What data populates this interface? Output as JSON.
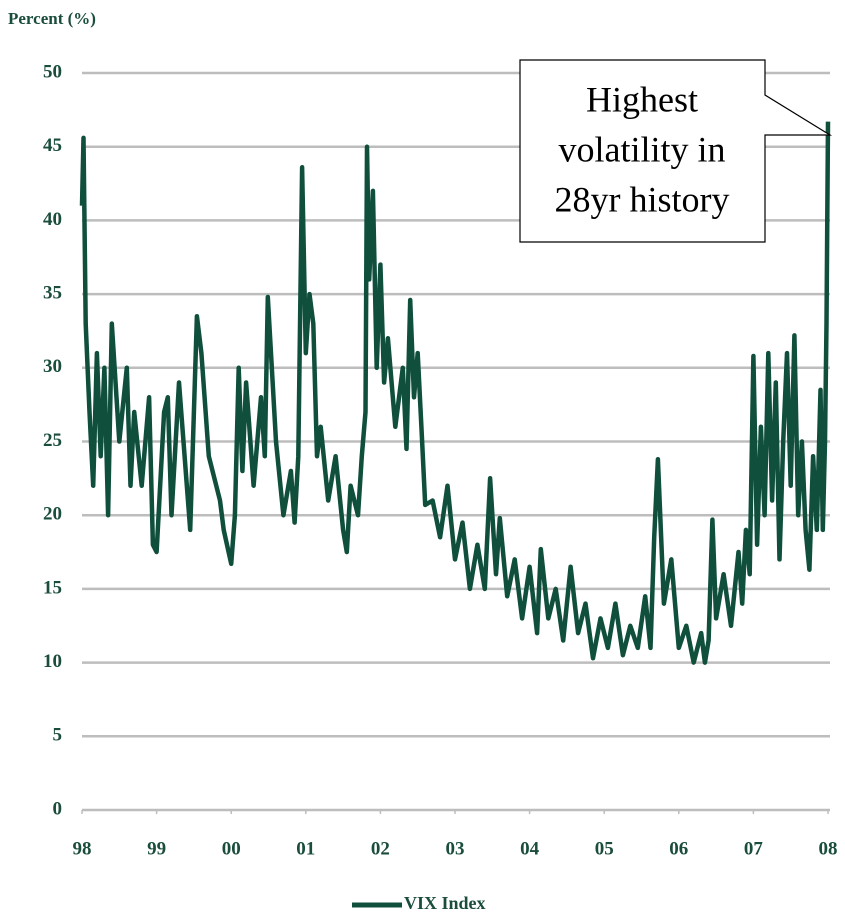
{
  "chart_data": {
    "type": "line",
    "y_label": "Percent (%)",
    "annotation": [
      "Highest",
      "volatility in",
      "28yr history"
    ],
    "grid": true,
    "legend": "bottom",
    "xlim": [
      1998,
      2008
    ],
    "ylim": [
      0,
      50
    ],
    "yticks": [
      0,
      5,
      10,
      15,
      20,
      25,
      30,
      35,
      40,
      45,
      50
    ],
    "xticks": [
      {
        "value": 1998,
        "label": "98"
      },
      {
        "value": 1999,
        "label": "99"
      },
      {
        "value": 2000,
        "label": "00"
      },
      {
        "value": 2001,
        "label": "01"
      },
      {
        "value": 2002,
        "label": "02"
      },
      {
        "value": 2003,
        "label": "03"
      },
      {
        "value": 2004,
        "label": "04"
      },
      {
        "value": 2005,
        "label": "05"
      },
      {
        "value": 2006,
        "label": "06"
      },
      {
        "value": 2007,
        "label": "07"
      },
      {
        "value": 2008,
        "label": "08"
      }
    ],
    "x": [
      1998.0,
      1998.02,
      1998.05,
      1998.1,
      1998.15,
      1998.2,
      1998.25,
      1998.3,
      1998.35,
      1998.4,
      1998.5,
      1998.6,
      1998.65,
      1998.7,
      1998.8,
      1998.9,
      1998.95,
      1999.0,
      1999.1,
      1999.15,
      1999.2,
      1999.3,
      1999.45,
      1999.5,
      1999.54,
      1999.6,
      1999.7,
      1999.85,
      1999.9,
      2000.0,
      2000.05,
      2000.1,
      2000.15,
      2000.2,
      2000.3,
      2000.4,
      2000.45,
      2000.49,
      2000.6,
      2000.7,
      2000.8,
      2000.85,
      2000.9,
      2000.95,
      2001.0,
      2001.05,
      2001.1,
      2001.15,
      2001.2,
      2001.3,
      2001.4,
      2001.5,
      2001.55,
      2001.6,
      2001.7,
      2001.75,
      2001.8,
      2001.82,
      2001.85,
      2001.9,
      2001.95,
      2002.0,
      2002.05,
      2002.1,
      2002.2,
      2002.3,
      2002.35,
      2002.4,
      2002.45,
      2002.5,
      2002.55,
      2002.6,
      2002.7,
      2002.8,
      2002.9,
      2003.0,
      2003.1,
      2003.2,
      2003.3,
      2003.4,
      2003.47,
      2003.55,
      2003.6,
      2003.7,
      2003.8,
      2003.9,
      2004.0,
      2004.1,
      2004.15,
      2004.25,
      2004.35,
      2004.45,
      2004.55,
      2004.65,
      2004.75,
      2004.85,
      2004.95,
      2005.05,
      2005.15,
      2005.25,
      2005.35,
      2005.45,
      2005.55,
      2005.62,
      2005.67,
      2005.72,
      2005.8,
      2005.9,
      2006.0,
      2006.1,
      2006.2,
      2006.3,
      2006.35,
      2006.4,
      2006.45,
      2006.5,
      2006.6,
      2006.7,
      2006.8,
      2006.85,
      2006.9,
      2006.95,
      2007.0,
      2007.05,
      2007.1,
      2007.15,
      2007.2,
      2007.25,
      2007.3,
      2007.35,
      2007.4,
      2007.45,
      2007.5,
      2007.55,
      2007.6,
      2007.65,
      2007.7,
      2007.75,
      2007.8,
      2007.85,
      2007.9,
      2007.93,
      2007.96,
      2007.98,
      2008.0
    ],
    "series": [
      {
        "name": "VIX Index",
        "color": "#0f4f3c",
        "values": [
          41,
          45.6,
          33,
          27,
          22,
          31,
          24,
          30,
          20,
          33,
          25,
          30,
          22,
          27,
          22,
          28,
          18,
          17.5,
          27,
          28,
          20,
          29,
          19,
          27,
          33.5,
          31,
          24,
          21,
          19,
          16.7,
          20,
          30,
          23,
          29,
          22,
          28,
          24,
          34.8,
          25,
          20,
          23,
          19.5,
          24,
          43.6,
          31,
          35,
          33,
          24,
          26,
          21,
          24,
          19,
          17.5,
          22,
          20,
          24,
          27,
          45,
          36,
          42,
          30,
          37,
          29,
          32,
          26,
          30,
          24.5,
          34.6,
          28,
          31,
          26,
          20.7,
          21,
          18.5,
          22,
          17,
          19.5,
          15,
          18,
          15,
          22.5,
          16,
          19.8,
          14.5,
          17,
          13,
          16.5,
          12,
          17.7,
          13,
          15,
          11.5,
          16.5,
          12,
          14,
          10.3,
          13,
          11,
          14,
          10.5,
          12.5,
          11,
          14.5,
          11,
          18.5,
          23.8,
          14,
          17,
          11,
          12.5,
          10,
          12,
          10,
          11.5,
          19.7,
          13,
          16,
          12.5,
          17.5,
          14,
          19,
          16,
          30.8,
          18,
          26,
          20,
          31,
          21,
          29,
          17,
          25,
          31,
          22,
          32.2,
          20,
          25,
          19,
          16.3,
          24,
          19,
          28.5,
          19,
          25,
          33,
          46.7
        ]
      }
    ]
  }
}
